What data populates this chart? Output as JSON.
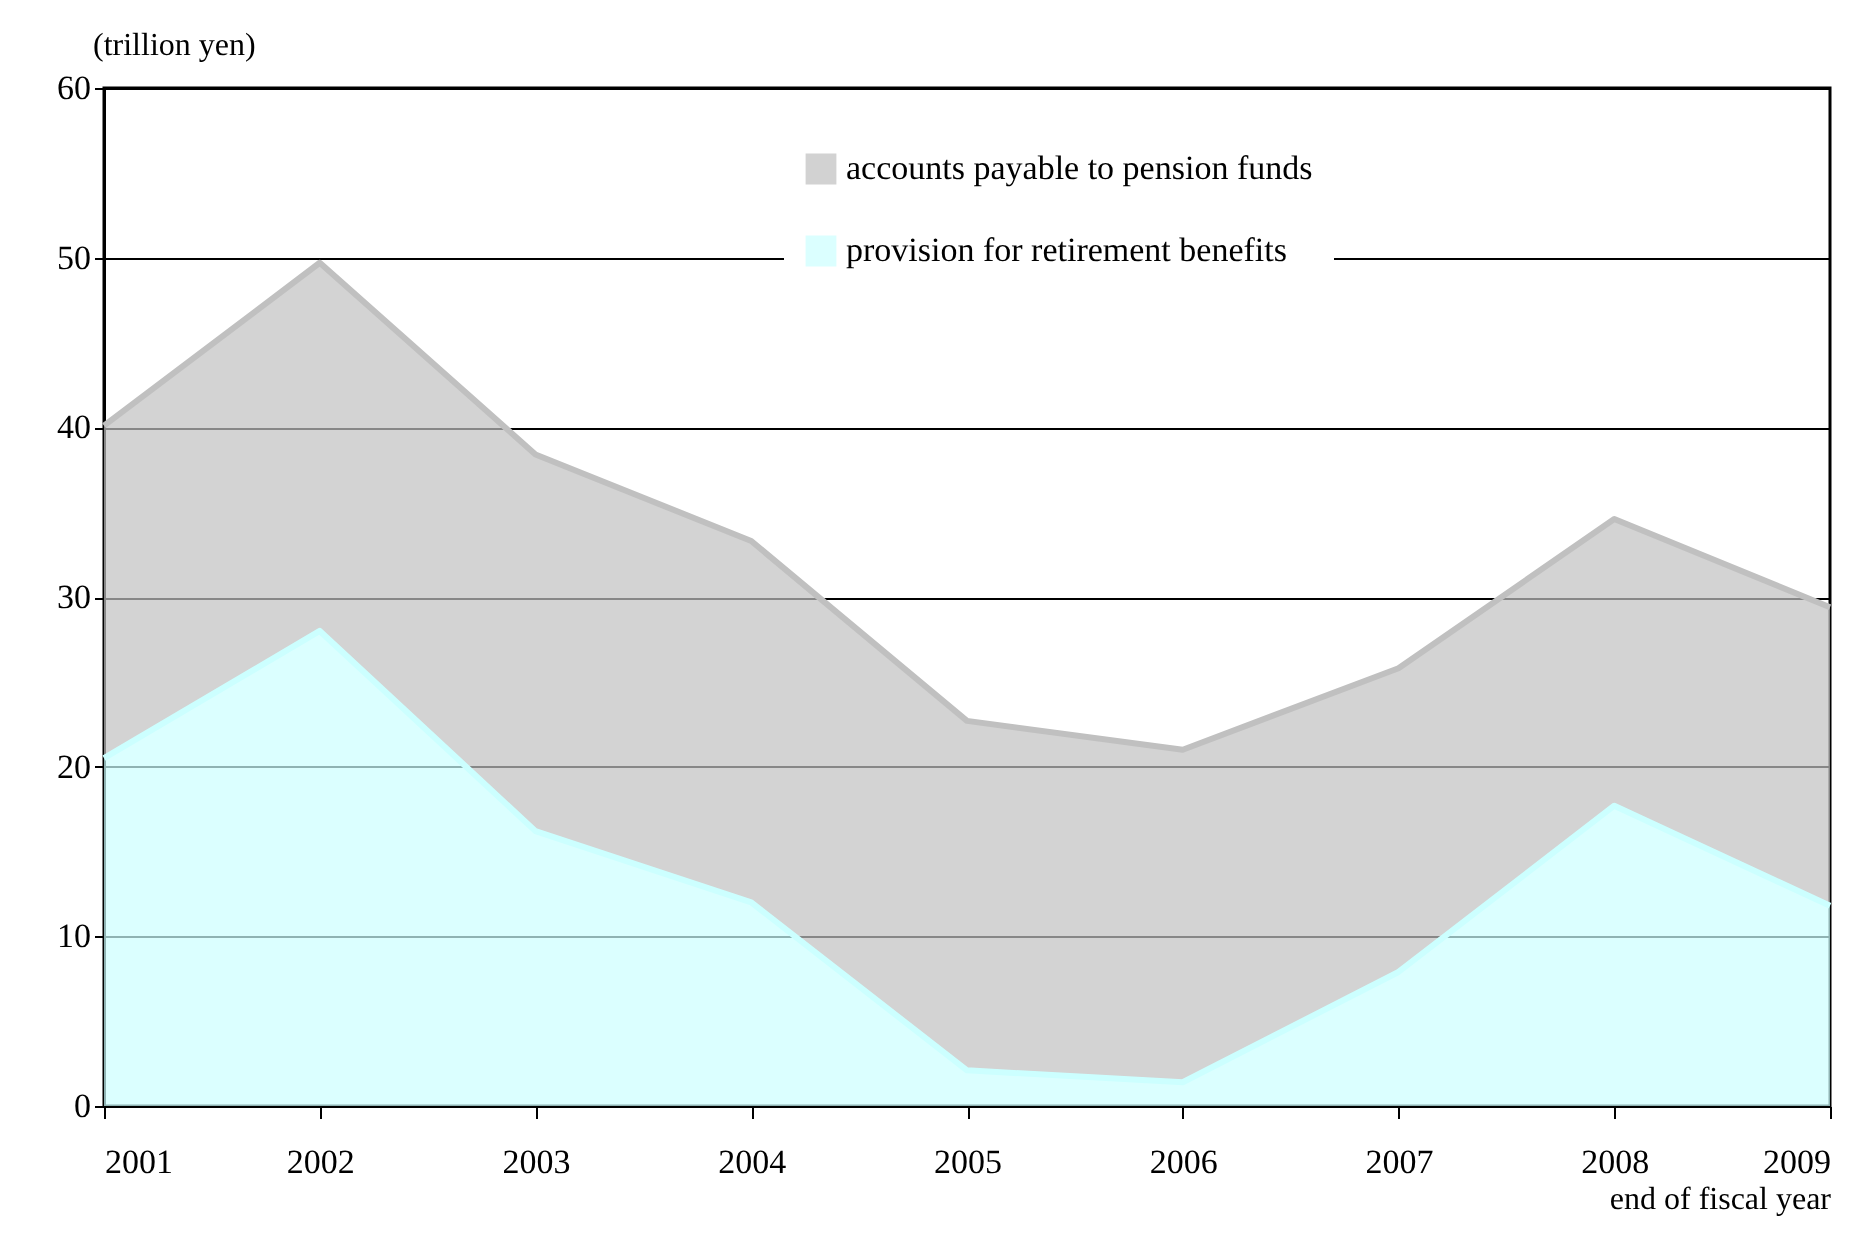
{
  "chart_data": {
    "type": "area",
    "stacked": true,
    "ylabel": "(trillion yen)",
    "xlabel": "end of fiscal year",
    "categories": [
      "2001",
      "2002",
      "2003",
      "2004",
      "2005",
      "2006",
      "2007",
      "2008",
      "2009"
    ],
    "series": [
      {
        "name": "provision for retirement benefits",
        "color": "#ccffff",
        "values": [
          20.5,
          28.0,
          16.2,
          12.0,
          2.1,
          1.4,
          7.9,
          17.7,
          11.8
        ]
      },
      {
        "name": "accounts payable to pension funds",
        "color": "#c0c0c0",
        "values": [
          19.6,
          21.7,
          22.2,
          21.3,
          20.6,
          19.6,
          17.9,
          16.9,
          17.6
        ]
      }
    ],
    "ylim": [
      0,
      60
    ],
    "yticks": [
      0,
      10,
      20,
      30,
      40,
      50,
      60
    ],
    "grid": "y",
    "legend": "top right"
  }
}
